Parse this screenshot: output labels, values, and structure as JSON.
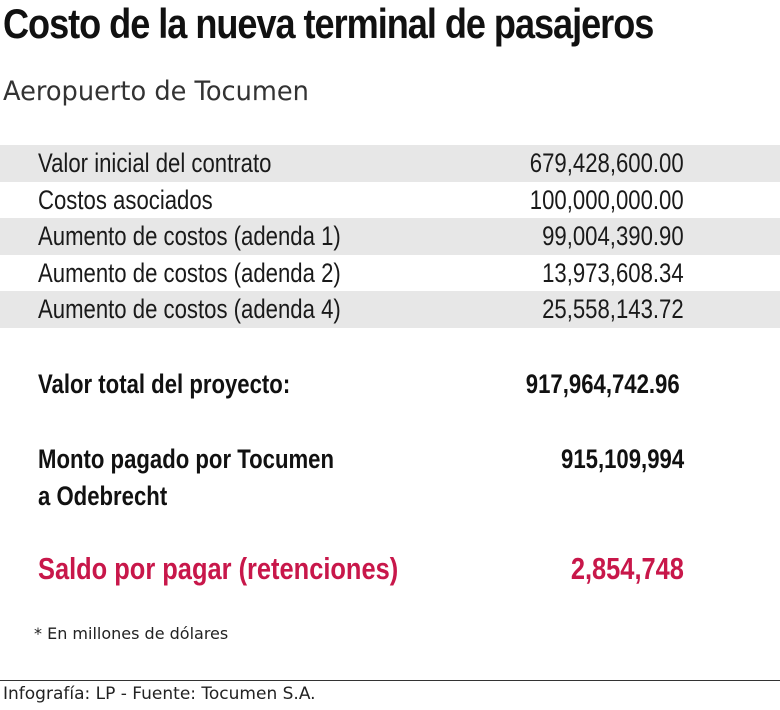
{
  "header": {
    "title": "Costo de la nueva terminal de pasajeros",
    "subtitle": "Aeropuerto de Tocumen"
  },
  "items": [
    {
      "label": "Valor inicial del contrato",
      "value": "679,428,600.00"
    },
    {
      "label": "Costos asociados",
      "value": "100,000,000.00"
    },
    {
      "label": "Aumento de costos (adenda 1)",
      "value": "99,004,390.90"
    },
    {
      "label": "Aumento de costos (adenda 2)",
      "value": "13,973,608.34"
    },
    {
      "label": "Aumento de costos (adenda 4)",
      "value": "25,558,143.72"
    }
  ],
  "summary": {
    "total_label": "Valor total del proyecto:",
    "total_value": "917,964,742.96",
    "paid_label_line1": "Monto pagado por Tocumen",
    "paid_label_line2": "a Odebrecht",
    "paid_value": "915,109,994",
    "balance_label": "Saldo por pagar (retenciones)",
    "balance_value": "2,854,748"
  },
  "footnote": "* En millones de dólares",
  "credit": "Infografía: LP - Fuente: Tocumen S.A.",
  "colors": {
    "accent": "#c8174a",
    "row_shade": "#e7e7e7",
    "text": "#111111"
  }
}
